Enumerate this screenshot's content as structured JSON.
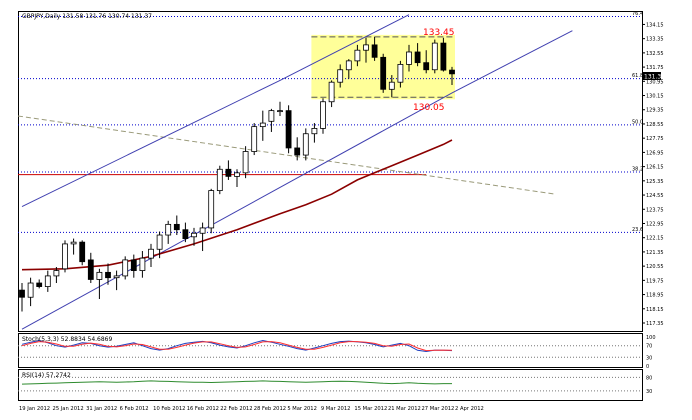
{
  "header": {
    "main": "GBPJPY,Daily  131.58 131.76 130.74 131.37",
    "stoch": "Stoch(5,3,3) 52.8834 54.6869",
    "rsi": "RSI(14) 57.2742"
  },
  "annotations": {
    "high": "133.45",
    "low": "130.05"
  },
  "price_badge": "131.37",
  "colors": {
    "axis": "#000000",
    "grid_dot": "#0000cc",
    "channel": "#4040b0",
    "ma": "#8b0000",
    "hline_red": "#cc0000",
    "dashed": "#9a9a7a",
    "box_fill": "#ffff99",
    "box_border": "#555555",
    "annot": "#ff0000",
    "stoch_main": "#1f3fbf",
    "stoch_signal": "#ff3030",
    "rsi": "#2e8b2e",
    "bull": "#ffffff",
    "bear": "#000000"
  },
  "chart_data": [
    {
      "type": "candlestick",
      "title": "GBPJPY,Daily  131.58 131.76 130.74 131.37",
      "x_tick_labels": [
        "19 Jan 2012",
        "25 Jan 2012",
        "31 Jan 2012",
        "6 Feb 2012",
        "10 Feb 2012",
        "16 Feb 2012",
        "22 Feb 2012",
        "28 Feb 2012",
        "5 Mar 2012",
        "9 Mar 2012",
        "15 Mar 2012",
        "21 Mar 2012",
        "27 Mar 2012",
        "2 Apr 2012"
      ],
      "y_tick_labels": [
        "134.15",
        "133.35",
        "132.55",
        "131.75",
        "130.95",
        "130.15",
        "129.35",
        "128.55",
        "127.75",
        "126.95",
        "126.15",
        "125.35",
        "124.55",
        "123.75",
        "122.95",
        "122.15",
        "121.35",
        "120.55",
        "119.75",
        "118.95",
        "118.15",
        "117.35"
      ],
      "ylim": [
        116.9,
        134.85
      ],
      "fib_levels": [
        {
          "label": "76.4",
          "value": 134.6
        },
        {
          "label": "61.8",
          "value": 131.1
        },
        {
          "label": "50.0",
          "value": 128.5
        },
        {
          "label": "38.2",
          "value": 125.85
        },
        {
          "label": "23.6",
          "value": 122.45
        }
      ],
      "ohlc": [
        [
          119.2,
          119.6,
          118.0,
          118.8
        ],
        [
          118.8,
          119.9,
          118.3,
          119.6
        ],
        [
          119.6,
          119.8,
          119.3,
          119.4
        ],
        [
          119.4,
          120.3,
          119.1,
          120.0
        ],
        [
          120.0,
          120.5,
          119.6,
          120.3
        ],
        [
          120.4,
          122.0,
          120.2,
          121.8
        ],
        [
          121.8,
          122.1,
          121.2,
          121.9
        ],
        [
          121.9,
          122.0,
          120.6,
          120.8
        ],
        [
          120.9,
          121.3,
          119.6,
          119.8
        ],
        [
          119.8,
          120.4,
          118.7,
          120.2
        ],
        [
          120.2,
          120.7,
          119.5,
          119.9
        ],
        [
          119.9,
          120.3,
          119.2,
          120.0
        ],
        [
          120.0,
          121.1,
          119.8,
          120.9
        ],
        [
          120.9,
          121.2,
          119.9,
          120.3
        ],
        [
          120.3,
          121.4,
          119.9,
          121.0
        ],
        [
          121.0,
          121.8,
          120.5,
          121.5
        ],
        [
          121.5,
          122.5,
          121.0,
          122.3
        ],
        [
          122.3,
          123.1,
          121.8,
          122.9
        ],
        [
          122.9,
          123.4,
          122.3,
          122.6
        ],
        [
          122.6,
          123.0,
          121.9,
          122.1
        ],
        [
          122.2,
          122.7,
          121.7,
          122.4
        ],
        [
          122.4,
          123.0,
          121.4,
          122.7
        ],
        [
          122.7,
          124.9,
          122.4,
          124.8
        ],
        [
          124.8,
          126.2,
          124.6,
          126.0
        ],
        [
          126.0,
          126.5,
          125.4,
          125.6
        ],
        [
          125.6,
          126.0,
          125.0,
          125.8
        ],
        [
          125.8,
          127.3,
          125.5,
          127.0
        ],
        [
          127.0,
          128.6,
          126.8,
          128.4
        ],
        [
          128.4,
          129.3,
          127.6,
          128.6
        ],
        [
          128.7,
          129.4,
          128.1,
          129.3
        ],
        [
          129.3,
          129.8,
          129.0,
          129.3
        ],
        [
          129.3,
          129.6,
          126.9,
          127.2
        ],
        [
          127.2,
          127.8,
          126.5,
          126.8
        ],
        [
          126.8,
          128.3,
          126.5,
          128.0
        ],
        [
          128.0,
          128.6,
          127.5,
          128.3
        ],
        [
          128.3,
          130.0,
          128.0,
          129.8
        ],
        [
          129.8,
          131.0,
          129.5,
          130.9
        ],
        [
          130.9,
          131.9,
          130.6,
          131.6
        ],
        [
          131.6,
          132.2,
          131.1,
          132.1
        ],
        [
          132.1,
          133.0,
          131.8,
          132.7
        ],
        [
          132.7,
          133.4,
          132.0,
          133.0
        ],
        [
          133.0,
          133.45,
          132.1,
          132.3
        ],
        [
          132.3,
          132.5,
          130.3,
          130.5
        ],
        [
          130.5,
          131.3,
          130.05,
          130.9
        ],
        [
          130.9,
          132.1,
          130.6,
          131.9
        ],
        [
          131.9,
          133.0,
          131.5,
          132.6
        ],
        [
          132.6,
          133.1,
          131.8,
          132.0
        ],
        [
          132.0,
          132.7,
          131.4,
          131.6
        ],
        [
          131.6,
          133.3,
          131.4,
          133.1
        ],
        [
          133.1,
          133.4,
          131.5,
          131.58
        ],
        [
          131.58,
          131.76,
          130.74,
          131.37
        ]
      ],
      "ma": {
        "label": "MA",
        "values": [
          [
            0,
            120.35
          ],
          [
            5,
            120.4
          ],
          [
            10,
            120.6
          ],
          [
            15,
            121.1
          ],
          [
            20,
            121.8
          ],
          [
            25,
            122.6
          ],
          [
            30,
            123.5
          ],
          [
            33,
            124.0
          ],
          [
            36,
            124.6
          ],
          [
            39,
            125.4
          ],
          [
            41,
            125.8
          ],
          [
            43,
            126.2
          ],
          [
            46,
            126.8
          ],
          [
            49,
            127.4
          ],
          [
            50,
            127.65
          ]
        ]
      },
      "channel": {
        "upper": [
          [
            0,
            123.9
          ],
          [
            30,
            131.0
          ],
          [
            45,
            134.7
          ]
        ],
        "lower": [
          [
            0,
            117.0
          ],
          [
            50,
            130.3
          ],
          [
            64,
            133.8
          ]
        ]
      },
      "red_hline": {
        "value": 125.7,
        "range": [
          17,
          47
        ]
      },
      "dashed_trend": {
        "from": [
          0,
          129.0
        ],
        "to": [
          62,
          124.6
        ]
      },
      "box": {
        "from": 34,
        "to": 50,
        "y_top": 133.45,
        "y_bottom": 130.05
      }
    },
    {
      "type": "line",
      "title": "Stoch(5,3,3) 52.8834 54.6869",
      "ylim": [
        0,
        100
      ],
      "y_tick_labels": [
        "100",
        "70",
        "30",
        "0"
      ],
      "series": [
        {
          "name": "main",
          "values": [
            75,
            82,
            88,
            80,
            70,
            65,
            72,
            80,
            78,
            70,
            65,
            68,
            74,
            80,
            70,
            60,
            55,
            60,
            70,
            78,
            82,
            85,
            80,
            72,
            66,
            62,
            70,
            80,
            88,
            82,
            75,
            68,
            60,
            55,
            62,
            70,
            78,
            84,
            86,
            83,
            80,
            74,
            66,
            72,
            78,
            70,
            54,
            50,
            55,
            54,
            53
          ]
        },
        {
          "name": "signal",
          "values": [
            70,
            78,
            84,
            82,
            76,
            68,
            68,
            75,
            79,
            75,
            68,
            66,
            70,
            76,
            74,
            66,
            58,
            58,
            64,
            72,
            79,
            83,
            83,
            77,
            70,
            64,
            66,
            74,
            83,
            84,
            80,
            72,
            64,
            58,
            58,
            64,
            72,
            80,
            84,
            84,
            82,
            78,
            70,
            68,
            74,
            76,
            62,
            53,
            54,
            55,
            54
          ]
        }
      ]
    },
    {
      "type": "line",
      "title": "RSI(14) 57.2742",
      "ylim": [
        0,
        100
      ],
      "y_tick_labels": [
        "80",
        "30"
      ],
      "series": [
        {
          "name": "RSI",
          "values": [
            55,
            56,
            57,
            58,
            59,
            60,
            61,
            62,
            63,
            64,
            63,
            62,
            63,
            64,
            66,
            67,
            66,
            65,
            64,
            63,
            62,
            62,
            61,
            62,
            63,
            64,
            65,
            66,
            67,
            66,
            65,
            64,
            63,
            62,
            63,
            64,
            65,
            66,
            65,
            64,
            62,
            60,
            58,
            57,
            58,
            60,
            58,
            57,
            56,
            57,
            57
          ]
        }
      ]
    }
  ]
}
